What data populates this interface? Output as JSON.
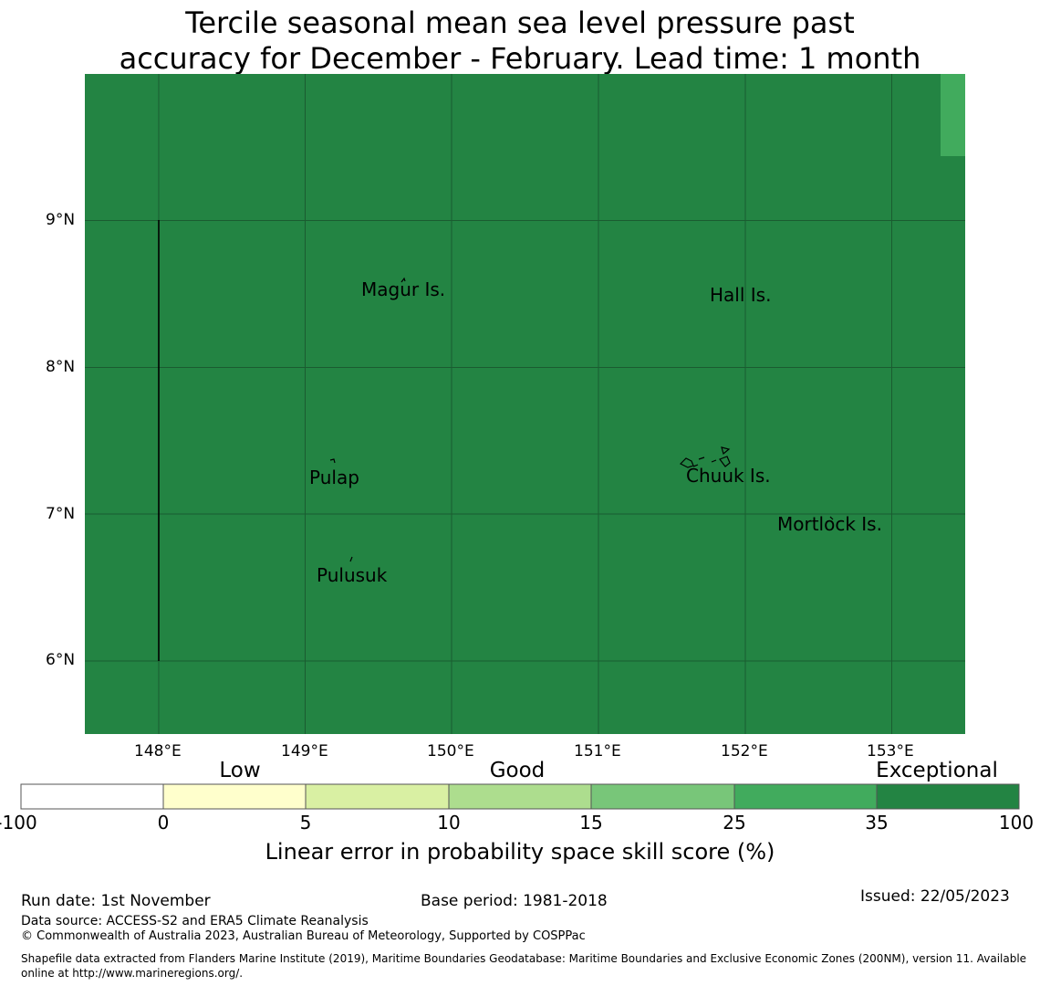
{
  "title": {
    "line1": "Tercile seasonal mean sea level pressure past",
    "line2": "accuracy for December - February. Lead time: 1 month"
  },
  "map": {
    "background_color": "#238443",
    "grid_color": "#1a5c30",
    "lon_labels": [
      "148°E",
      "149°E",
      "150°E",
      "151°E",
      "152°E",
      "153°E"
    ],
    "lat_labels": [
      "9°N",
      "8°N",
      "7°N",
      "6°N"
    ],
    "places": [
      {
        "name": "Magur Is."
      },
      {
        "name": "Hall Is."
      },
      {
        "name": "Pulap"
      },
      {
        "name": "Chuuk Is."
      },
      {
        "name": "Mortlock Is."
      },
      {
        "name": "Pulusuk"
      }
    ]
  },
  "colorbar": {
    "categories": [
      "Low",
      "Good",
      "Exceptional"
    ],
    "ticks": [
      "-100",
      "0",
      "5",
      "10",
      "15",
      "25",
      "35",
      "100"
    ],
    "colors": [
      "#ffffff",
      "#ffffcc",
      "#d9f0a3",
      "#addd8e",
      "#78c679",
      "#41ab5d",
      "#238443"
    ],
    "label": "Linear error in probability space skill score (%)"
  },
  "footer": {
    "run_date": "Run date: 1st November",
    "base_period": "Base period: 1981-2018",
    "issued": "Issued: 22/05/2023",
    "data_source": "Data source: ACCESS-S2 and ERA5 Climate Reanalysis",
    "copyright": "© Commonwealth of Australia 2023, Australian Bureau of Meteorology, Supported by COSPPac",
    "shapefile": "Shapefile data extracted from Flanders Marine Institute (2019), Maritime Boundaries Geodatabase: Maritime Boundaries and Exclusive Economic Zones (200NM), version 11. Available online at http://www.marineregions.org/."
  }
}
